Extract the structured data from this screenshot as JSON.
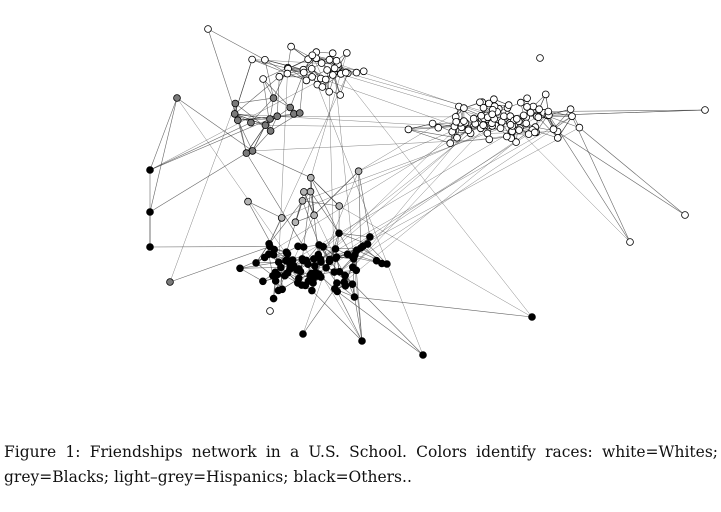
{
  "figure": {
    "caption_label": "Figure 1:",
    "caption_text": "Friendships network in a U.S. School. Colors identify races: white=Whites; grey=Blacks; light–grey=Hispanics; black=Others..",
    "legend": [
      {
        "color": "#ffffff",
        "meaning": "Whites"
      },
      {
        "color": "#7a7a7a",
        "meaning": "Blacks"
      },
      {
        "color": "#b4b4b4",
        "meaning": "Hispanics"
      },
      {
        "color": "#000000",
        "meaning": "Others"
      }
    ],
    "edge_color": "#333333"
  }
}
